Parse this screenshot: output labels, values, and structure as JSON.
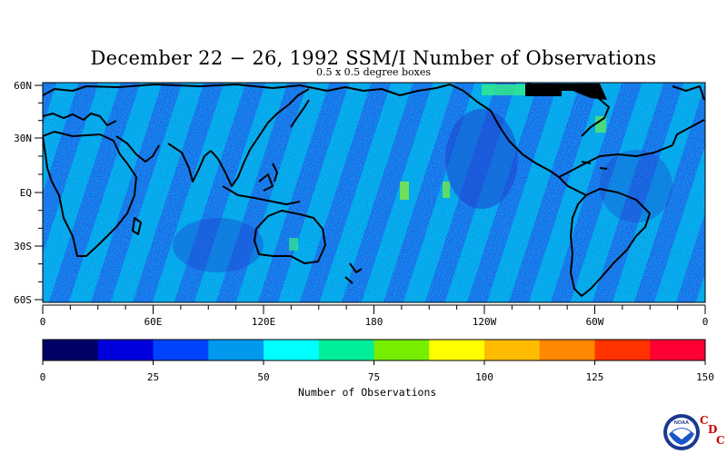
{
  "title": "December 22 − 26, 1992 SSM/I Number of Observations",
  "subtitle": "0.5 x 0.5 degree boxes",
  "lat_labels": [
    "60N",
    "30N",
    "EQ",
    "30S",
    "60S"
  ],
  "lon_labels": [
    "0",
    "60E",
    "120E",
    "180",
    "120W",
    "60W",
    "0"
  ],
  "colorbar": {
    "title": "Number of Observations",
    "tick_labels": [
      "0",
      "25",
      "50",
      "75",
      "100",
      "125",
      "150"
    ],
    "colors": [
      "#000066",
      "#0000dd",
      "#0044ff",
      "#0099ee",
      "#00ffff",
      "#00ee99",
      "#77ee00",
      "#ffff00",
      "#ffbb00",
      "#ff8800",
      "#ff3300",
      "#ff0033"
    ]
  },
  "logo": {
    "icon": "noaa-logo-icon",
    "text": "NOAA",
    "badge": [
      "C",
      "D",
      "C"
    ]
  },
  "colors": {
    "ocean_low": "#2f6fe0",
    "ocean_mid": "#0099ee",
    "ocean_high": "#00ccee",
    "coast": "#000000"
  }
}
